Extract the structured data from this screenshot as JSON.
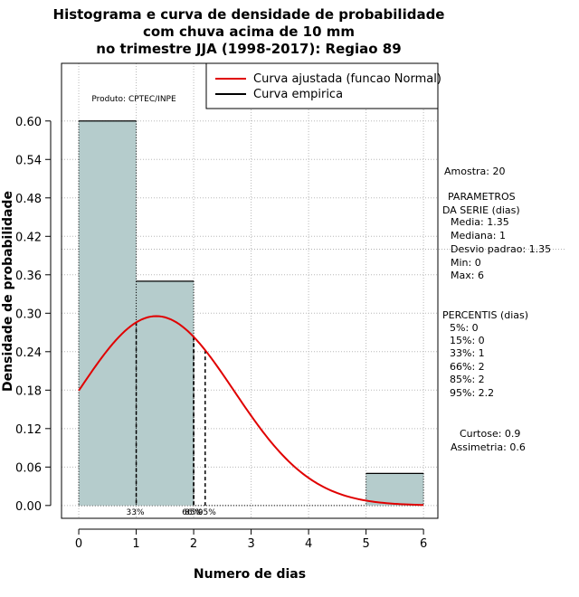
{
  "chart_data": {
    "type": "bar",
    "title_lines": [
      "Histograma e curva de densidade de probabilidade",
      "com chuva acima de 10 mm",
      "no trimestre JJA (1998-2017): Regiao 89"
    ],
    "xlabel": "Numero de dias",
    "ylabel": "Densidade de probabilidade",
    "xlim": [
      -0.3,
      6.25
    ],
    "ylim": [
      -0.02,
      0.69
    ],
    "x_ticks": [
      0,
      1,
      2,
      3,
      4,
      5,
      6
    ],
    "y_ticks": [
      0.0,
      0.06,
      0.12,
      0.18,
      0.24,
      0.3,
      0.36,
      0.42,
      0.48,
      0.54,
      0.6
    ],
    "y_tick_labels": [
      "0.00",
      "0.06",
      "0.12",
      "0.18",
      "0.24",
      "0.30",
      "0.36",
      "0.42",
      "0.48",
      "0.54",
      "0.60"
    ],
    "bars": [
      {
        "x0": 0,
        "x1": 1,
        "density": 0.6
      },
      {
        "x0": 1,
        "x1": 2,
        "density": 0.35
      },
      {
        "x0": 5,
        "x1": 6,
        "density": 0.05
      }
    ],
    "bar_color": "#b5cccc",
    "curve_color": "#e00000",
    "normal_fit": {
      "mean": 1.35,
      "sd": 1.35
    },
    "percentile_lines": [
      {
        "x": 1,
        "label": "33%"
      },
      {
        "x": 2,
        "label": "66%"
      },
      {
        "x": 2,
        "label": "85%"
      },
      {
        "x": 2.2,
        "label": "95%"
      }
    ],
    "hline_y": 0.4,
    "legend": [
      {
        "label": "Curva ajustada (funcao Normal)",
        "color": "#e00000"
      },
      {
        "label": "Curva empirica",
        "color": "#000000"
      }
    ],
    "legend_position": "top-right",
    "product_label": "Produto: CPTEC/INPE"
  },
  "side_panel": {
    "sample": "Amostra: 20",
    "params_title_1": "PARAMETROS",
    "params_title_2": "DA SERIE (dias)",
    "params": [
      "Media: 1.35",
      "Mediana: 1",
      "Desvio padrao: 1.35",
      "Min: 0",
      "Max: 6"
    ],
    "percentis_title": "PERCENTIS (dias)",
    "percentis": [
      "5%: 0",
      "15%: 0",
      "33%: 1",
      "66%: 2",
      "85%: 2",
      "95%: 2.2"
    ],
    "curtose": "Curtose: 0.9",
    "assimetria": "Assimetria: 0.6"
  }
}
